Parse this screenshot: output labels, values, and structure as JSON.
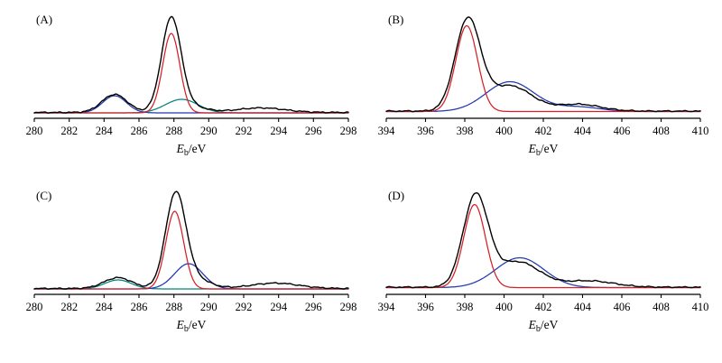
{
  "page": {
    "background": "#ffffff"
  },
  "chart_data": [
    {
      "panel": "A",
      "panel_label": "(A)",
      "type": "line",
      "xlabel": {
        "symbol": "E",
        "subscript": "b",
        "unit": "/eV"
      },
      "xlim": [
        280,
        298
      ],
      "xticks": [
        280,
        282,
        284,
        286,
        288,
        290,
        292,
        294,
        296,
        298
      ],
      "ylim": [
        0,
        1.1
      ],
      "grid": false,
      "legend": "none",
      "peak_format": "center_eV, height_rel, fwhm_eV",
      "series": [
        {
          "name": "fit-component-teal",
          "color": "#00857d",
          "baseline": 0.03,
          "peaks": [
            [
              288.45,
              0.15,
              2.2
            ]
          ]
        },
        {
          "name": "fit-component-blue",
          "color": "#2038b0",
          "baseline": 0.03,
          "peaks": [
            [
              284.6,
              0.19,
              1.6
            ]
          ]
        },
        {
          "name": "fit-component-red",
          "color": "#d42026",
          "baseline": 0.03,
          "peaks": [
            [
              287.85,
              0.88,
              1.15
            ]
          ]
        },
        {
          "name": "envelope",
          "color": "#000000",
          "baseline": 0.035,
          "noise": 0.008,
          "peaks": [
            [
              284.6,
              0.2,
              1.7
            ],
            [
              287.85,
              1.0,
              1.3
            ],
            [
              288.6,
              0.08,
              2.4
            ],
            [
              293.0,
              0.05,
              3.2
            ]
          ]
        }
      ]
    },
    {
      "panel": "B",
      "panel_label": "(B)",
      "type": "line",
      "xlabel": {
        "symbol": "E",
        "subscript": "b",
        "unit": "/eV"
      },
      "xlim": [
        394,
        410
      ],
      "xticks": [
        394,
        396,
        398,
        400,
        402,
        404,
        406,
        408,
        410
      ],
      "ylim": [
        0,
        1.1
      ],
      "grid": false,
      "legend": "none",
      "peak_format": "center_eV, height_rel, fwhm_eV",
      "series": [
        {
          "name": "fit-component-blue",
          "color": "#2038b0",
          "baseline": 0.045,
          "peaks": [
            [
              400.3,
              0.33,
              2.9
            ],
            [
              403.8,
              0.05,
              2.6
            ]
          ]
        },
        {
          "name": "fit-component-red",
          "color": "#d42026",
          "baseline": 0.045,
          "peaks": [
            [
              398.1,
              0.95,
              1.3
            ]
          ]
        },
        {
          "name": "envelope",
          "color": "#000000",
          "baseline": 0.05,
          "noise": 0.008,
          "peaks": [
            [
              398.15,
              1.0,
              1.5
            ],
            [
              400.3,
              0.28,
              2.6
            ],
            [
              403.8,
              0.075,
              2.6
            ]
          ]
        }
      ]
    },
    {
      "panel": "C",
      "panel_label": "(C)",
      "type": "line",
      "xlabel": {
        "symbol": "E",
        "subscript": "b",
        "unit": "/eV"
      },
      "xlim": [
        280,
        298
      ],
      "xticks": [
        280,
        282,
        284,
        286,
        288,
        290,
        292,
        294,
        296,
        298
      ],
      "ylim": [
        0,
        1.1
      ],
      "grid": false,
      "legend": "none",
      "peak_format": "center_eV, height_rel, fwhm_eV",
      "series": [
        {
          "name": "fit-component-teal",
          "color": "#00857d",
          "baseline": 0.03,
          "peaks": [
            [
              284.8,
              0.1,
              1.8
            ]
          ]
        },
        {
          "name": "fit-component-blue",
          "color": "#2038b0",
          "baseline": 0.03,
          "peaks": [
            [
              288.85,
              0.28,
              1.9
            ]
          ]
        },
        {
          "name": "fit-component-red",
          "color": "#d42026",
          "baseline": 0.03,
          "peaks": [
            [
              288.05,
              0.86,
              1.2
            ]
          ]
        },
        {
          "name": "envelope",
          "color": "#000000",
          "baseline": 0.035,
          "noise": 0.008,
          "peaks": [
            [
              284.8,
              0.12,
              1.9
            ],
            [
              288.1,
              1.0,
              1.35
            ],
            [
              289.0,
              0.12,
              2.2
            ],
            [
              293.8,
              0.06,
              3.2
            ]
          ]
        }
      ]
    },
    {
      "panel": "D",
      "panel_label": "(D)",
      "type": "line",
      "xlabel": {
        "symbol": "E",
        "subscript": "b",
        "unit": "/eV"
      },
      "xlim": [
        394,
        410
      ],
      "xticks": [
        394,
        396,
        398,
        400,
        402,
        404,
        406,
        408,
        410
      ],
      "ylim": [
        0,
        1.1
      ],
      "grid": false,
      "legend": "none",
      "peak_format": "center_eV, height_rel, fwhm_eV",
      "series": [
        {
          "name": "fit-component-blue",
          "color": "#2038b0",
          "baseline": 0.045,
          "peaks": [
            [
              400.8,
              0.33,
              2.9
            ]
          ]
        },
        {
          "name": "fit-component-red",
          "color": "#d42026",
          "baseline": 0.045,
          "peaks": [
            [
              398.5,
              0.92,
              1.3
            ]
          ]
        },
        {
          "name": "envelope",
          "color": "#000000",
          "baseline": 0.05,
          "noise": 0.008,
          "peaks": [
            [
              398.55,
              1.0,
              1.5
            ],
            [
              400.7,
              0.28,
              2.6
            ],
            [
              404.3,
              0.07,
              3.0
            ]
          ]
        }
      ]
    }
  ]
}
